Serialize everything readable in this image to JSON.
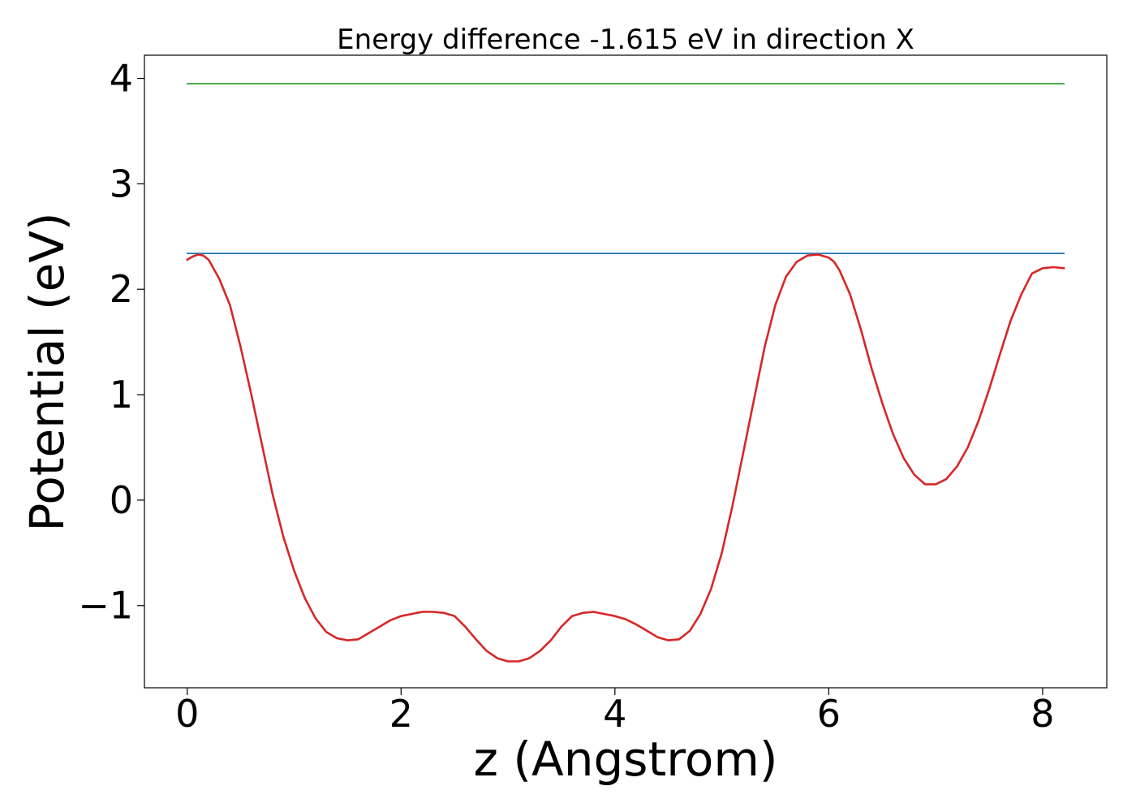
{
  "chart_data": {
    "type": "line",
    "title": "Energy difference -1.615 eV in direction X",
    "xlabel": "z (Angstrom)",
    "ylabel": "Potential (eV)",
    "xlim": [
      -0.4,
      8.6
    ],
    "ylim": [
      -1.78,
      4.22
    ],
    "xticks": [
      0,
      2,
      4,
      6,
      8
    ],
    "xtick_labels": [
      "0",
      "2",
      "4",
      "6",
      "8"
    ],
    "yticks": [
      -1,
      0,
      1,
      2,
      3,
      4
    ],
    "ytick_labels": [
      "−1",
      "0",
      "1",
      "2",
      "3",
      "4"
    ],
    "grid": false,
    "legend": "none",
    "series": [
      {
        "color": "#2ca02c",
        "x": [
          0,
          8.2
        ],
        "y": [
          3.95,
          3.95
        ]
      },
      {
        "color": "#1f77b4",
        "x": [
          0,
          8.2
        ],
        "y": [
          2.34,
          2.34
        ]
      },
      {
        "color": "#d62728",
        "x": [
          0,
          0.05,
          0.1,
          0.15,
          0.2,
          0.3,
          0.4,
          0.5,
          0.6,
          0.7,
          0.8,
          0.9,
          1.0,
          1.1,
          1.2,
          1.3,
          1.4,
          1.5,
          1.6,
          1.7,
          1.8,
          1.9,
          2.0,
          2.1,
          2.2,
          2.3,
          2.4,
          2.5,
          2.6,
          2.7,
          2.8,
          2.9,
          3.0,
          3.1,
          3.2,
          3.3,
          3.4,
          3.5,
          3.6,
          3.7,
          3.8,
          3.9,
          4.0,
          4.1,
          4.2,
          4.3,
          4.4,
          4.5,
          4.6,
          4.7,
          4.8,
          4.9,
          5.0,
          5.1,
          5.2,
          5.3,
          5.4,
          5.5,
          5.6,
          5.7,
          5.8,
          5.9,
          6.0,
          6.05,
          6.1,
          6.2,
          6.3,
          6.4,
          6.5,
          6.6,
          6.7,
          6.8,
          6.9,
          7.0,
          7.1,
          7.2,
          7.3,
          7.4,
          7.5,
          7.6,
          7.7,
          7.8,
          7.9,
          8.0,
          8.1,
          8.2
        ],
        "y": [
          2.28,
          2.31,
          2.33,
          2.32,
          2.28,
          2.1,
          1.85,
          1.45,
          1.0,
          0.52,
          0.05,
          -0.35,
          -0.67,
          -0.93,
          -1.12,
          -1.25,
          -1.31,
          -1.33,
          -1.32,
          -1.26,
          -1.2,
          -1.14,
          -1.1,
          -1.08,
          -1.06,
          -1.06,
          -1.07,
          -1.1,
          -1.2,
          -1.32,
          -1.43,
          -1.5,
          -1.53,
          -1.53,
          -1.5,
          -1.43,
          -1.33,
          -1.2,
          -1.1,
          -1.07,
          -1.06,
          -1.08,
          -1.1,
          -1.13,
          -1.18,
          -1.24,
          -1.3,
          -1.33,
          -1.32,
          -1.24,
          -1.08,
          -0.84,
          -0.5,
          -0.05,
          0.45,
          0.95,
          1.45,
          1.85,
          2.12,
          2.26,
          2.32,
          2.33,
          2.3,
          2.26,
          2.18,
          1.95,
          1.62,
          1.25,
          0.92,
          0.63,
          0.4,
          0.24,
          0.15,
          0.15,
          0.2,
          0.32,
          0.5,
          0.75,
          1.05,
          1.38,
          1.7,
          1.95,
          2.15,
          2.2,
          2.21,
          2.2
        ]
      }
    ]
  }
}
